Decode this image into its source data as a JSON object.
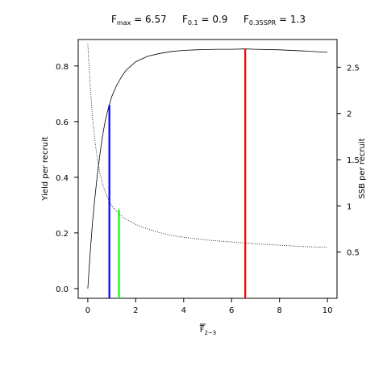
{
  "chart_data": {
    "type": "line",
    "title": {
      "parts": [
        {
          "base": "F",
          "sub": "max",
          "value": "= 6.57"
        },
        {
          "base": "F",
          "sub": "0.1",
          "value": "= 0.9"
        },
        {
          "base": "F",
          "sub": "0.35SPR",
          "value": "= 1.3"
        }
      ]
    },
    "xlabel": {
      "base": "F",
      "sub": "2−3",
      "overbar": true
    },
    "ylabel_left": "Yield per recruit",
    "ylabel_right": "SSB per recruit",
    "xlim": [
      -0.4,
      10.4
    ],
    "ylim_left": [
      -0.035,
      0.895
    ],
    "ylim_right": [
      -0.0,
      2.8
    ],
    "x_ticks": [
      0,
      2,
      4,
      6,
      8,
      10
    ],
    "x_tick_labels": [
      "0",
      "2",
      "4",
      "6",
      "8",
      "10"
    ],
    "y_left_ticks": [
      0.0,
      0.2,
      0.4,
      0.6,
      0.8
    ],
    "y_left_tick_labels": [
      "0.0",
      "0.2",
      "0.4",
      "0.6",
      "0.8"
    ],
    "y_right_ticks": [
      0.5,
      1.0,
      1.5,
      2.0,
      2.5
    ],
    "y_right_tick_labels": [
      "0.5",
      "1",
      "1.5",
      "2",
      "2.5"
    ],
    "grid": false,
    "series": [
      {
        "axis": "left",
        "style": "solid",
        "color": "#000000",
        "x": [
          0,
          0.1,
          0.2,
          0.3,
          0.4,
          0.5,
          0.6,
          0.7,
          0.8,
          0.9,
          1.0,
          1.2,
          1.4,
          1.6,
          1.8,
          2.0,
          2.5,
          3.0,
          3.5,
          4.0,
          4.5,
          5.0,
          5.5,
          6.0,
          6.57,
          7.0,
          8.0,
          9.0,
          10.0
        ],
        "y": [
          0.0,
          0.13,
          0.24,
          0.33,
          0.41,
          0.48,
          0.54,
          0.59,
          0.63,
          0.66,
          0.69,
          0.73,
          0.76,
          0.785,
          0.8,
          0.815,
          0.835,
          0.845,
          0.852,
          0.856,
          0.858,
          0.859,
          0.86,
          0.86,
          0.861,
          0.86,
          0.858,
          0.854,
          0.849
        ]
      },
      {
        "axis": "right",
        "style": "dotted",
        "color": "#000000",
        "x": [
          0,
          0.1,
          0.2,
          0.3,
          0.4,
          0.5,
          0.6,
          0.8,
          1.0,
          1.2,
          1.5,
          2.0,
          2.5,
          3.0,
          3.5,
          4.0,
          5.0,
          6.0,
          7.0,
          8.0,
          9.0,
          10.0
        ],
        "y": [
          2.75,
          2.3,
          1.95,
          1.7,
          1.5,
          1.36,
          1.25,
          1.1,
          1.0,
          0.94,
          0.87,
          0.8,
          0.75,
          0.71,
          0.68,
          0.66,
          0.63,
          0.61,
          0.59,
          0.575,
          0.56,
          0.55
        ]
      }
    ],
    "reference_lines": [
      {
        "label": "Fmax",
        "x": 6.57,
        "y": 0.861,
        "axis": "left",
        "color": "#ff0000"
      },
      {
        "label": "F0.1",
        "x": 0.9,
        "y": 0.66,
        "axis": "left",
        "color": "#0000ff"
      },
      {
        "label": "F0.35SPR",
        "x": 1.3,
        "y": 0.96,
        "axis": "right",
        "color": "#00ff00"
      }
    ]
  }
}
